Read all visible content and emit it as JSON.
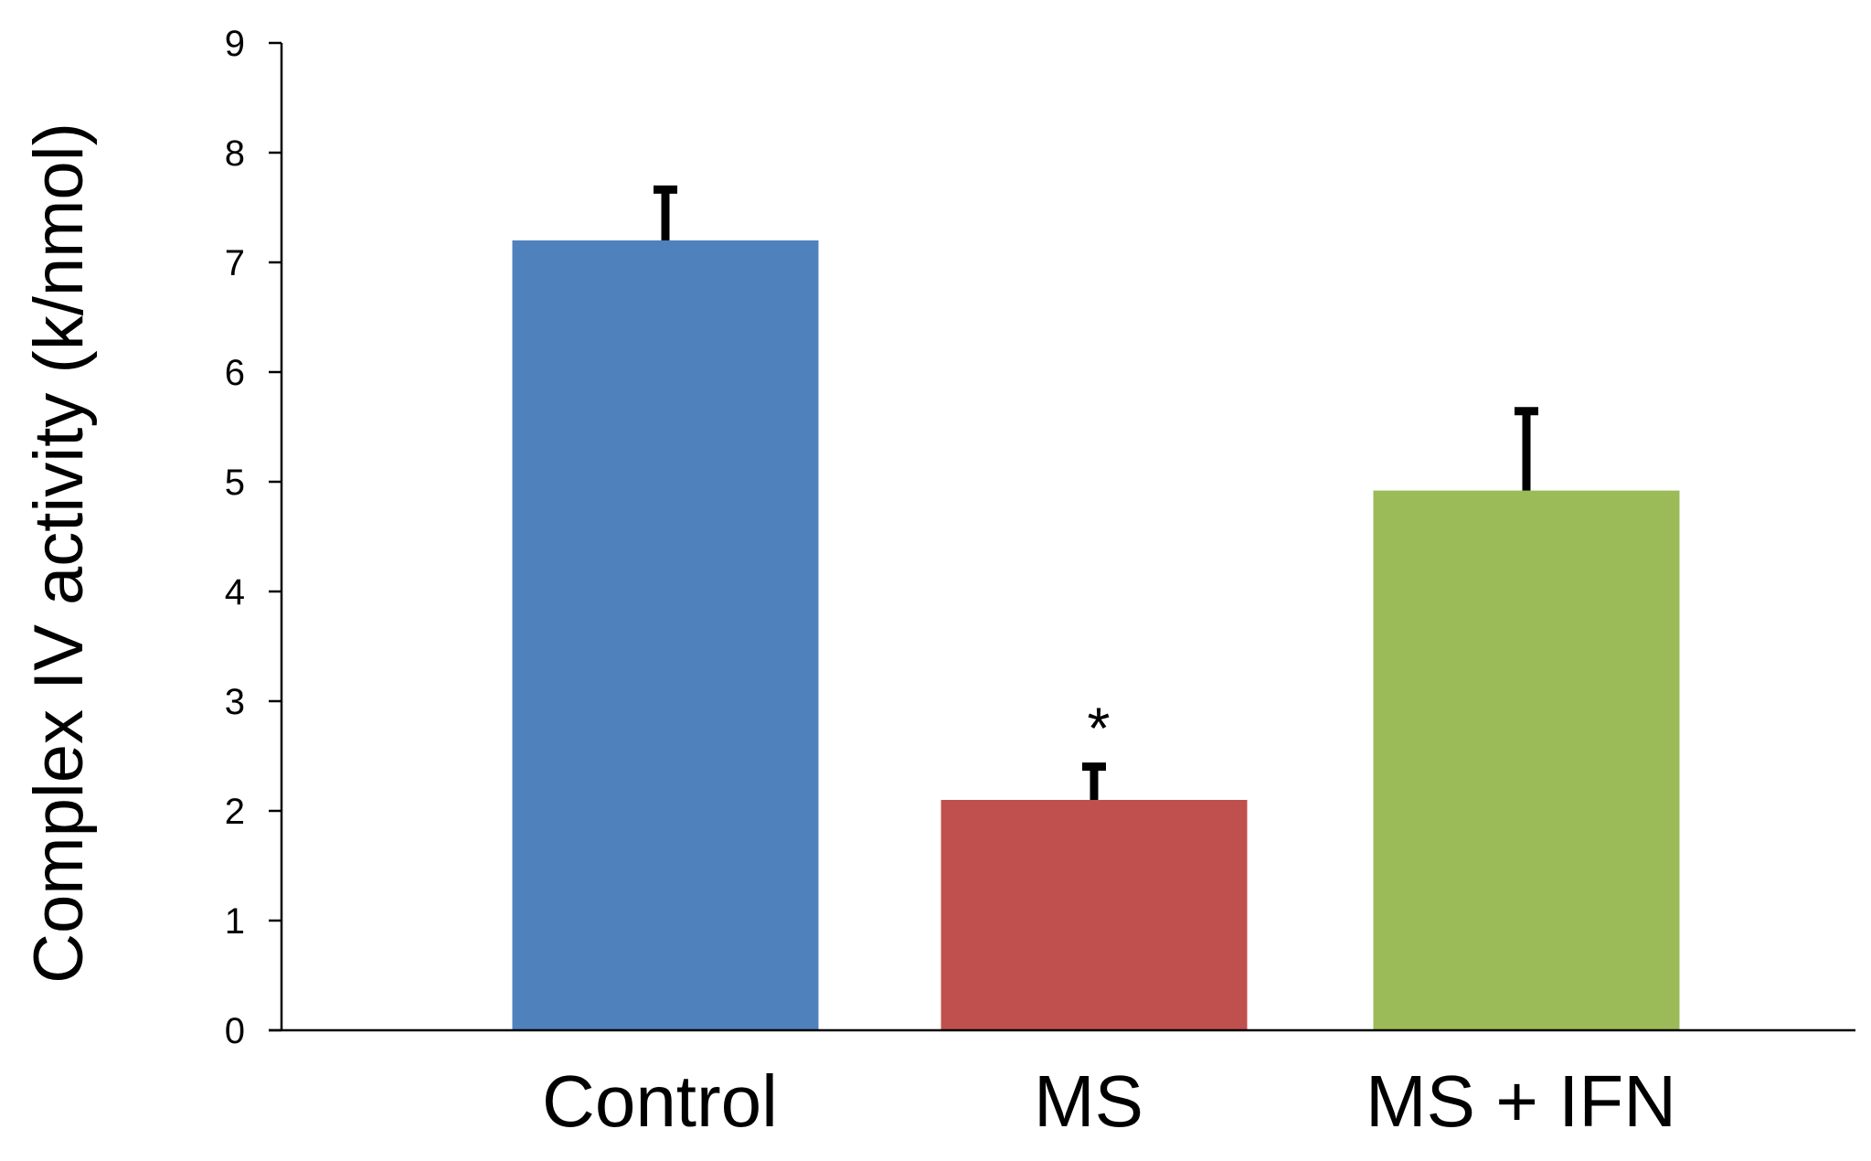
{
  "chart_data": {
    "type": "bar",
    "title": "",
    "xlabel": "",
    "ylabel": "Complex IV activity  (k/nmol)",
    "categories": [
      "Control",
      "MS",
      "MS + IFN"
    ],
    "values": [
      7.2,
      2.1,
      4.92
    ],
    "error_upper": [
      0.48,
      0.32,
      0.74
    ],
    "colors": [
      "#4F81BD",
      "#C0504D",
      "#9BBB59"
    ],
    "annotations": [
      {
        "category": "MS",
        "text": "*"
      }
    ],
    "ylim": [
      0,
      9
    ],
    "yticks": [
      "0",
      "1",
      "2",
      "3",
      "4",
      "5",
      "6",
      "7",
      "8",
      "9"
    ],
    "grid": false,
    "legend": "none"
  }
}
